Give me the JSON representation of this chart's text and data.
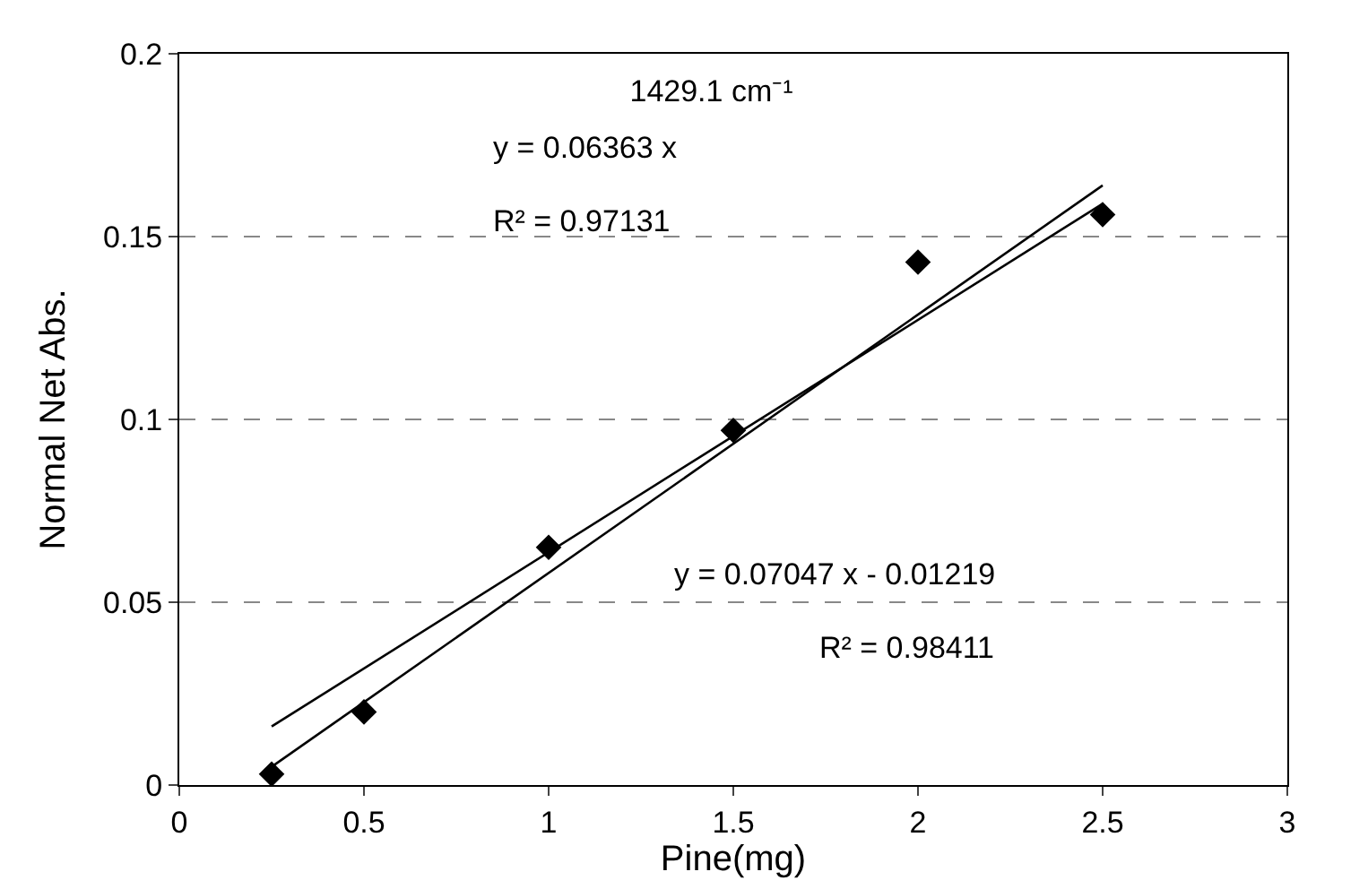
{
  "chart_data": {
    "type": "scatter",
    "title": "1429.1 cm⁻¹",
    "xlabel": "Pine(mg)",
    "ylabel": "Normal Net Abs.",
    "xlim": [
      0,
      3
    ],
    "xticks": [
      0,
      0.5,
      1,
      1.5,
      2,
      2.5,
      3
    ],
    "ylim": [
      0,
      0.2
    ],
    "yticks": [
      0,
      0.05,
      0.1,
      0.15,
      0.2
    ],
    "grid": "y",
    "series": [
      {
        "marker": "diamond",
        "color": "#000000",
        "x": [
          0.25,
          0.5,
          1,
          1.5,
          2,
          2.5
        ],
        "values": [
          0.003,
          0.02,
          0.065,
          0.097,
          0.143,
          0.156
        ]
      },
      {
        "type": "line",
        "color": "#000000",
        "x": [
          0.25,
          2.5
        ],
        "values": [
          0.016,
          0.159
        ]
      },
      {
        "type": "line",
        "color": "#000000",
        "x": [
          0.25,
          2.5
        ],
        "values": [
          0.005,
          0.164
        ]
      }
    ],
    "annotations": [
      "y = 0.06363 x",
      "R² = 0.97131",
      "y = 0.07047 x - 0.01219",
      "R² = 0.98411"
    ]
  }
}
